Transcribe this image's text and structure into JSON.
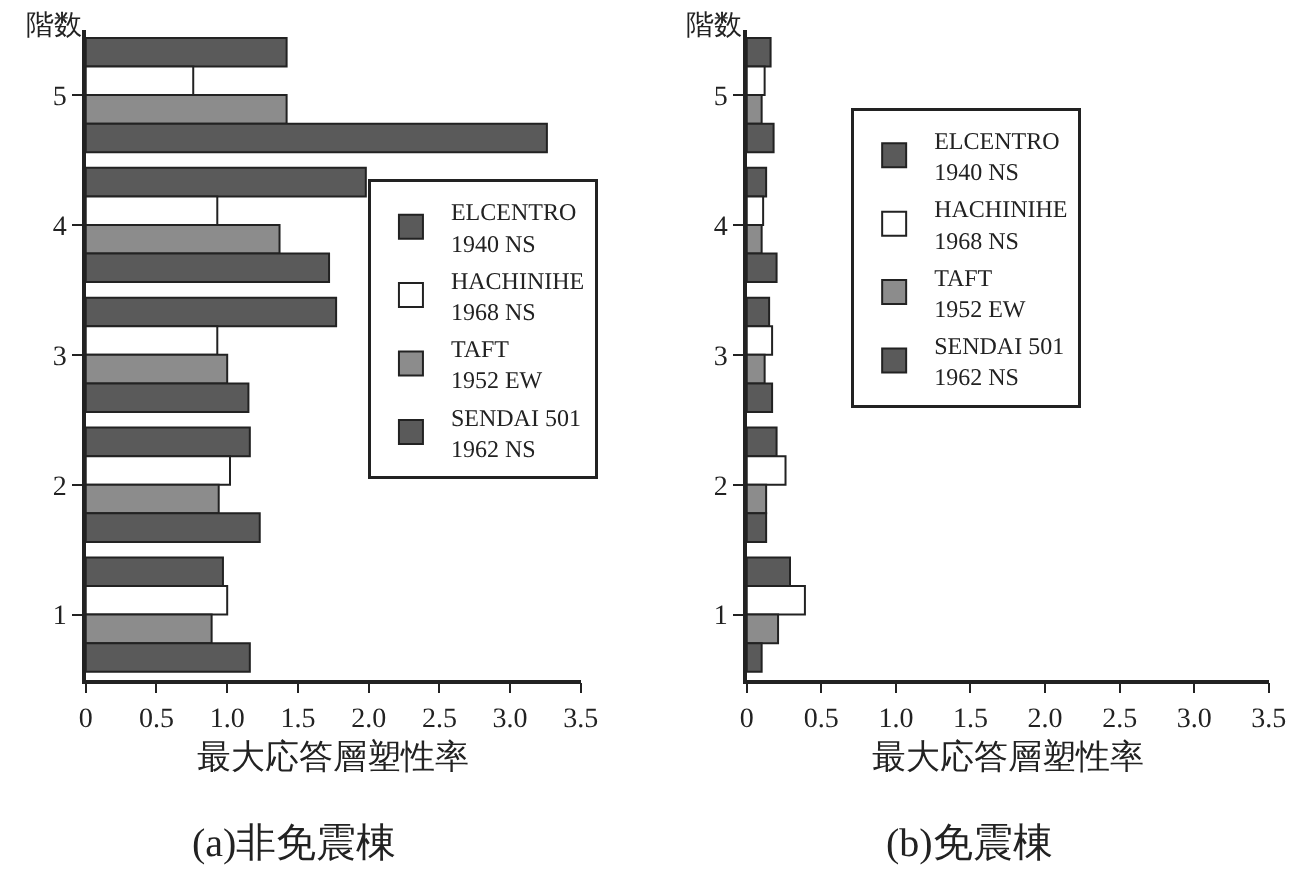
{
  "chart_data": [
    {
      "type": "bar",
      "orientation": "horizontal",
      "title": "(a)非免震棟",
      "xlabel": "最大応答層塑性率",
      "ylabel": "階数",
      "categories": [
        "5",
        "4",
        "3",
        "2",
        "1"
      ],
      "xlim": [
        0,
        3.5
      ],
      "xticks": [
        0,
        0.5,
        {
          "value": 1,
          "label": "1.0"
        },
        1.5,
        {
          "value": 2,
          "label": "2.0"
        },
        2.5,
        {
          "value": 3,
          "label": "3.0"
        },
        3.5
      ],
      "legend": "right",
      "series": [
        {
          "name": "ELCENTRO\n1940 NS",
          "color": "#5a5a5a",
          "values": [
            1.42,
            1.98,
            1.77,
            1.16,
            0.97
          ]
        },
        {
          "name": "HACHINIHE\n1968 NS",
          "color": "#ffffff",
          "values": [
            0.76,
            0.93,
            0.93,
            1.02,
            1.0
          ]
        },
        {
          "name": "TAFT\n1952 EW",
          "color": "#8c8c8c",
          "values": [
            1.42,
            1.37,
            1.0,
            0.94,
            0.89
          ]
        },
        {
          "name": "SENDAI 501\n1962 NS",
          "color": "#5a5a5a",
          "values": [
            3.26,
            1.72,
            1.15,
            1.23,
            1.16
          ]
        }
      ]
    },
    {
      "type": "bar",
      "orientation": "horizontal",
      "title": "(b)免震棟",
      "xlabel": "最大応答層塑性率",
      "ylabel": "階数",
      "categories": [
        "5",
        "4",
        "3",
        "2",
        "1"
      ],
      "xlim": [
        0,
        3.5
      ],
      "xticks": [
        0,
        0.5,
        {
          "value": 1,
          "label": "1.0"
        },
        1.5,
        {
          "value": 2,
          "label": "2.0"
        },
        2.5,
        {
          "value": 3,
          "label": "3.0"
        },
        3.5
      ],
      "legend": "top",
      "series": [
        {
          "name": "ELCENTRO\n1940 NS",
          "color": "#5a5a5a",
          "values": [
            0.16,
            0.13,
            0.15,
            0.2,
            0.29
          ]
        },
        {
          "name": "HACHINIHE\n1968 NS",
          "color": "#ffffff",
          "values": [
            0.12,
            0.11,
            0.17,
            0.26,
            0.39
          ]
        },
        {
          "name": "TAFT\n1952 EW",
          "color": "#8c8c8c",
          "values": [
            0.1,
            0.1,
            0.12,
            0.13,
            0.21
          ]
        },
        {
          "name": "SENDAI 501\n1962 NS",
          "color": "#5a5a5a",
          "values": [
            0.18,
            0.2,
            0.17,
            0.13,
            0.1
          ]
        }
      ]
    }
  ]
}
